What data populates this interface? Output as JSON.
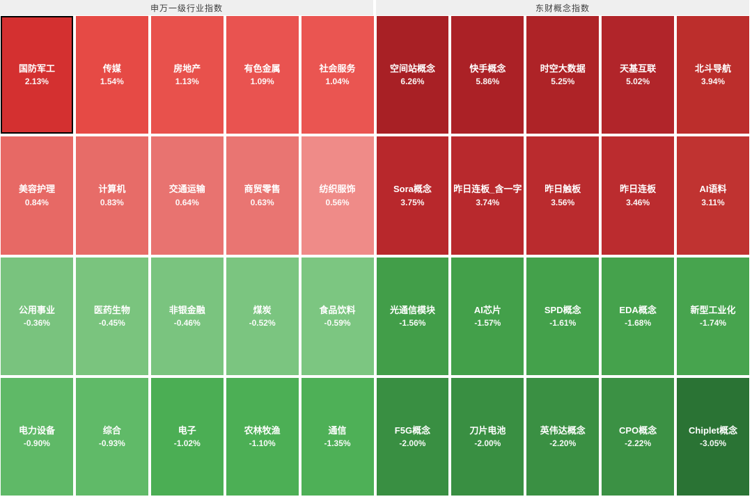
{
  "page": {
    "background": "#ffffff",
    "gap_color": "#ffffff",
    "header_bg": "#efefef",
    "header_text_color": "#3c3c3c"
  },
  "headers": [
    {
      "label": "申万一级行业指数"
    },
    {
      "label": "东财概念指数"
    }
  ],
  "board": {
    "rows": 4,
    "cols": 10,
    "cells": [
      {
        "name": "国防军工",
        "value": "2.13%",
        "color": "#d43030",
        "selected": true
      },
      {
        "name": "传媒",
        "value": "1.54%",
        "color": "#e64a45",
        "selected": false
      },
      {
        "name": "房地产",
        "value": "1.13%",
        "color": "#e8514c",
        "selected": false
      },
      {
        "name": "有色金属",
        "value": "1.09%",
        "color": "#e95350",
        "selected": false
      },
      {
        "name": "社会服务",
        "value": "1.04%",
        "color": "#ea5551",
        "selected": false
      },
      {
        "name": "空间站概念",
        "value": "6.26%",
        "color": "#a82025",
        "selected": false
      },
      {
        "name": "快手概念",
        "value": "5.86%",
        "color": "#ab2126",
        "selected": false
      },
      {
        "name": "时空大数据",
        "value": "5.25%",
        "color": "#ae2327",
        "selected": false
      },
      {
        "name": "天基互联",
        "value": "5.02%",
        "color": "#b1252a",
        "selected": false
      },
      {
        "name": "北斗导航",
        "value": "3.94%",
        "color": "#bc2e2c",
        "selected": false
      },
      {
        "name": "美容护理",
        "value": "0.84%",
        "color": "#e76965",
        "selected": false
      },
      {
        "name": "计算机",
        "value": "0.83%",
        "color": "#e76c68",
        "selected": false
      },
      {
        "name": "交通运输",
        "value": "0.64%",
        "color": "#e87370",
        "selected": false
      },
      {
        "name": "商贸零售",
        "value": "0.63%",
        "color": "#e97572",
        "selected": false
      },
      {
        "name": "纺织服饰",
        "value": "0.56%",
        "color": "#ef8b88",
        "selected": false
      },
      {
        "name": "Sora概念",
        "value": "3.75%",
        "color": "#b8282c",
        "selected": false
      },
      {
        "name": "昨日连板_含一字",
        "value": "3.74%",
        "color": "#b8292d",
        "selected": false
      },
      {
        "name": "昨日触板",
        "value": "3.56%",
        "color": "#ba2b2e",
        "selected": false
      },
      {
        "name": "昨日连板",
        "value": "3.46%",
        "color": "#bb2c2f",
        "selected": false
      },
      {
        "name": "AI语料",
        "value": "3.11%",
        "color": "#c03331",
        "selected": false
      },
      {
        "name": "公用事业",
        "value": "-0.36%",
        "color": "#79c37e",
        "selected": false
      },
      {
        "name": "医药生物",
        "value": "-0.45%",
        "color": "#7ac47e",
        "selected": false
      },
      {
        "name": "非银金融",
        "value": "-0.46%",
        "color": "#7ac47f",
        "selected": false
      },
      {
        "name": "煤炭",
        "value": "-0.52%",
        "color": "#7bc580",
        "selected": false
      },
      {
        "name": "食品饮料",
        "value": "-0.59%",
        "color": "#7cc681",
        "selected": false
      },
      {
        "name": "光通信模块",
        "value": "-1.56%",
        "color": "#429e49",
        "selected": false
      },
      {
        "name": "AI芯片",
        "value": "-1.57%",
        "color": "#43a04a",
        "selected": false
      },
      {
        "name": "SPD概念",
        "value": "-1.61%",
        "color": "#44a14b",
        "selected": false
      },
      {
        "name": "EDA概念",
        "value": "-1.68%",
        "color": "#45a24c",
        "selected": false
      },
      {
        "name": "新型工业化",
        "value": "-1.74%",
        "color": "#47a44e",
        "selected": false
      },
      {
        "name": "电力设备",
        "value": "-0.90%",
        "color": "#5fb967",
        "selected": false
      },
      {
        "name": "综合",
        "value": "-0.93%",
        "color": "#60ba68",
        "selected": false
      },
      {
        "name": "电子",
        "value": "-1.02%",
        "color": "#4bae54",
        "selected": false
      },
      {
        "name": "农林牧渔",
        "value": "-1.10%",
        "color": "#4caf55",
        "selected": false
      },
      {
        "name": "通信",
        "value": "-1.35%",
        "color": "#4eb057",
        "selected": false
      },
      {
        "name": "F5G概念",
        "value": "-2.00%",
        "color": "#398f42",
        "selected": false
      },
      {
        "name": "刀片电池",
        "value": "-2.00%",
        "color": "#398f42",
        "selected": false
      },
      {
        "name": "英伟达概念",
        "value": "-2.20%",
        "color": "#3a9043",
        "selected": false
      },
      {
        "name": "CPO概念",
        "value": "-2.22%",
        "color": "#3b9144",
        "selected": false
      },
      {
        "name": "Chiplet概念",
        "value": "-3.05%",
        "color": "#2a7334",
        "selected": false
      }
    ]
  },
  "chart_data": {
    "type": "heatmap",
    "legend_position": "none",
    "color_convention": "red = gain, green = loss (CN market), intensity scales with magnitude",
    "sections": [
      {
        "title": "申万一级行业指数",
        "items": [
          {
            "name": "国防军工",
            "pct": 2.13
          },
          {
            "name": "传媒",
            "pct": 1.54
          },
          {
            "name": "房地产",
            "pct": 1.13
          },
          {
            "name": "有色金属",
            "pct": 1.09
          },
          {
            "name": "社会服务",
            "pct": 1.04
          },
          {
            "name": "美容护理",
            "pct": 0.84
          },
          {
            "name": "计算机",
            "pct": 0.83
          },
          {
            "name": "交通运输",
            "pct": 0.64
          },
          {
            "name": "商贸零售",
            "pct": 0.63
          },
          {
            "name": "纺织服饰",
            "pct": 0.56
          },
          {
            "name": "公用事业",
            "pct": -0.36
          },
          {
            "name": "医药生物",
            "pct": -0.45
          },
          {
            "name": "非银金融",
            "pct": -0.46
          },
          {
            "name": "煤炭",
            "pct": -0.52
          },
          {
            "name": "食品饮料",
            "pct": -0.59
          },
          {
            "name": "电力设备",
            "pct": -0.9
          },
          {
            "name": "综合",
            "pct": -0.93
          },
          {
            "name": "电子",
            "pct": -1.02
          },
          {
            "name": "农林牧渔",
            "pct": -1.1
          },
          {
            "name": "通信",
            "pct": -1.35
          }
        ]
      },
      {
        "title": "东财概念指数",
        "items": [
          {
            "name": "空间站概念",
            "pct": 6.26
          },
          {
            "name": "快手概念",
            "pct": 5.86
          },
          {
            "name": "时空大数据",
            "pct": 5.25
          },
          {
            "name": "天基互联",
            "pct": 5.02
          },
          {
            "name": "北斗导航",
            "pct": 3.94
          },
          {
            "name": "Sora概念",
            "pct": 3.75
          },
          {
            "name": "昨日连板_含一字",
            "pct": 3.74
          },
          {
            "name": "昨日触板",
            "pct": 3.56
          },
          {
            "name": "昨日连板",
            "pct": 3.46
          },
          {
            "name": "AI语料",
            "pct": 3.11
          },
          {
            "name": "光通信模块",
            "pct": -1.56
          },
          {
            "name": "AI芯片",
            "pct": -1.57
          },
          {
            "name": "SPD概念",
            "pct": -1.61
          },
          {
            "name": "EDA概念",
            "pct": -1.68
          },
          {
            "name": "新型工业化",
            "pct": -1.74
          },
          {
            "name": "F5G概念",
            "pct": -2.0
          },
          {
            "name": "刀片电池",
            "pct": -2.0
          },
          {
            "name": "英伟达概念",
            "pct": -2.2
          },
          {
            "name": "CPO概念",
            "pct": -2.22
          },
          {
            "name": "Chiplet概念",
            "pct": -3.05
          }
        ]
      }
    ]
  }
}
